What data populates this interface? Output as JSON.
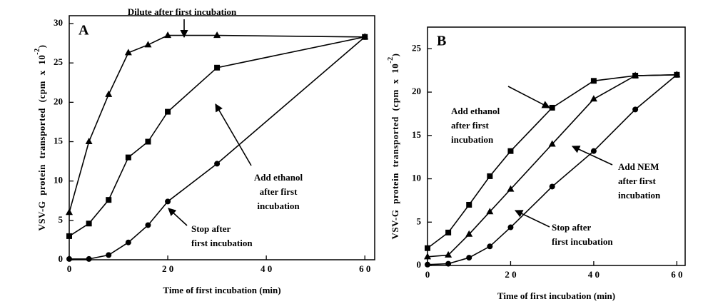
{
  "chart_data": [
    {
      "type": "line",
      "panel": "A",
      "xlabel": "Time of first incubation (min)",
      "ylabel": [
        "VSV-G protein transported (cpm x 10",
        "-2",
        ")"
      ],
      "xlim": [
        0,
        62
      ],
      "ylim": [
        0,
        31
      ],
      "xticks": [
        0,
        {
          "value": 20,
          "label": "2 0"
        },
        {
          "value": 40,
          "label": "4 0"
        },
        {
          "value": 60,
          "label": "6 0"
        }
      ],
      "yticks": [
        0,
        5,
        10,
        15,
        20,
        25,
        30
      ],
      "series": [
        {
          "marker": "triangle",
          "color": "#000000",
          "x": [
            0,
            4,
            8,
            12,
            16,
            20,
            30,
            60
          ],
          "values": [
            6,
            15,
            21,
            26.3,
            27.3,
            28.5,
            28.5,
            28.3
          ]
        },
        {
          "marker": "square",
          "color": "#000000",
          "x": [
            0,
            4,
            8,
            12,
            16,
            20,
            30,
            60
          ],
          "values": [
            3,
            4.6,
            7.6,
            13,
            15,
            18.8,
            24.4,
            28.3
          ]
        },
        {
          "marker": "circle",
          "color": "#000000",
          "x": [
            0,
            4,
            8,
            12,
            16,
            20,
            30,
            60
          ],
          "values": [
            0.1,
            0.1,
            0.6,
            2.2,
            4.4,
            7.4,
            12.2,
            28.3
          ]
        }
      ],
      "annotations": [
        [
          "Dilute after first incubation"
        ],
        [
          "Add ethanol",
          "after first",
          "incubation"
        ],
        [
          "Stop after",
          "first incubation"
        ]
      ]
    },
    {
      "type": "line",
      "panel": "B",
      "xlabel": "Time of first incubation (min)",
      "ylabel": [
        "VSV-G protein transported (cpm x 10",
        "-2",
        ")"
      ],
      "xlim": [
        0,
        62
      ],
      "ylim": [
        0,
        27.5
      ],
      "xticks": [
        0,
        {
          "value": 20,
          "label": "2 0"
        },
        {
          "value": 40,
          "label": "4 0"
        },
        {
          "value": 60,
          "label": "6 0"
        }
      ],
      "yticks": [
        0,
        5,
        10,
        15,
        20,
        25
      ],
      "series": [
        {
          "marker": "square",
          "color": "#000000",
          "x": [
            0,
            5,
            10,
            15,
            20,
            30,
            40,
            50,
            60
          ],
          "values": [
            2,
            3.8,
            7,
            10.3,
            13.2,
            18.2,
            21.3,
            21.9,
            22
          ]
        },
        {
          "marker": "triangle",
          "color": "#000000",
          "x": [
            0,
            5,
            10,
            15,
            20,
            30,
            40,
            50,
            60
          ],
          "values": [
            1,
            1.2,
            3.6,
            6.2,
            8.8,
            14,
            19.2,
            21.9,
            22
          ]
        },
        {
          "marker": "circle",
          "color": "#000000",
          "x": [
            0,
            5,
            10,
            15,
            20,
            30,
            40,
            50,
            60
          ],
          "values": [
            0.1,
            0.2,
            0.9,
            2.2,
            4.4,
            9.1,
            13.2,
            18,
            22
          ]
        }
      ],
      "annotations": [
        [
          "Add ethanol",
          "after first",
          "incubation"
        ],
        [
          "Add NEM",
          "after first",
          "incubation"
        ],
        [
          "Stop after",
          "first incubation"
        ]
      ]
    }
  ]
}
